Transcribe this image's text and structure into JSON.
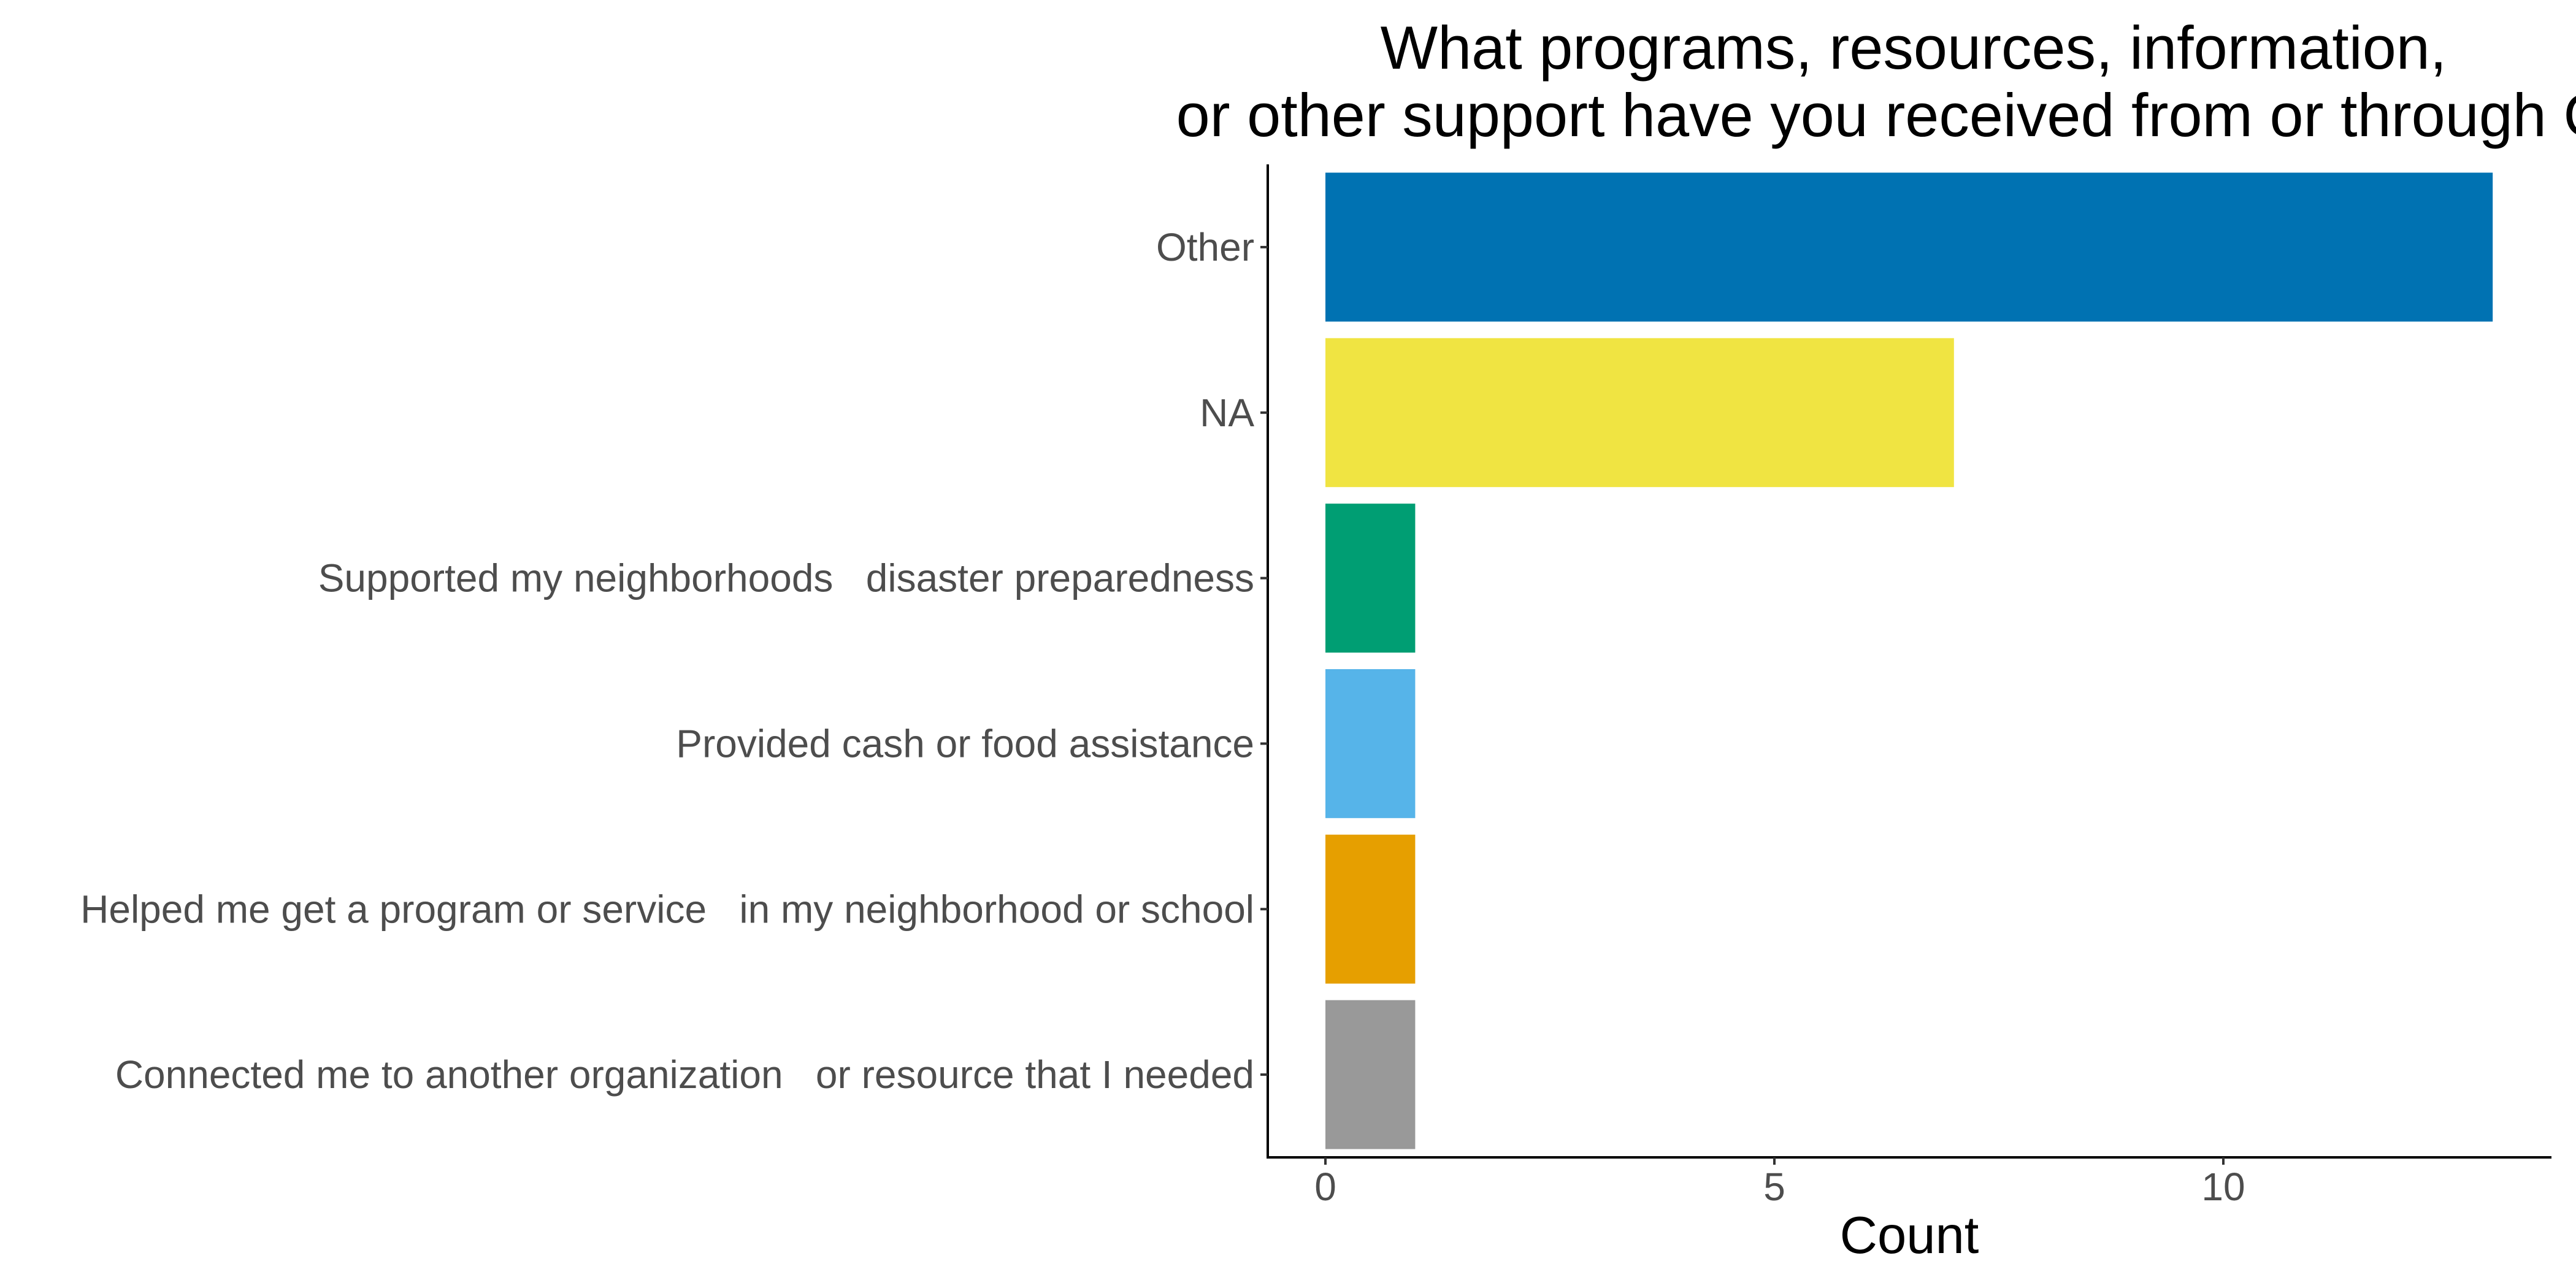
{
  "chart_data": {
    "type": "bar",
    "orientation": "horizontal",
    "title_lines": [
      "What programs, resources, information,",
      "or other support have you received from or through GA"
    ],
    "xlabel": "Count",
    "ylabel": "",
    "xlim": [
      0,
      13
    ],
    "xticks": [
      0,
      5,
      10
    ],
    "grid": false,
    "legend": "none",
    "categories": [
      "Other",
      "NA",
      "Supported my neighborhoods   disaster preparedness",
      "Provided cash or food assistance",
      "Helped me get a program or service   in my neighborhood or school",
      "Connected me to another organization   or resource that I needed"
    ],
    "values": [
      13,
      7,
      1,
      1,
      1,
      1
    ],
    "colors": [
      "#0072B2",
      "#F0E442",
      "#009E73",
      "#56B4E9",
      "#E69F00",
      "#999999"
    ]
  }
}
